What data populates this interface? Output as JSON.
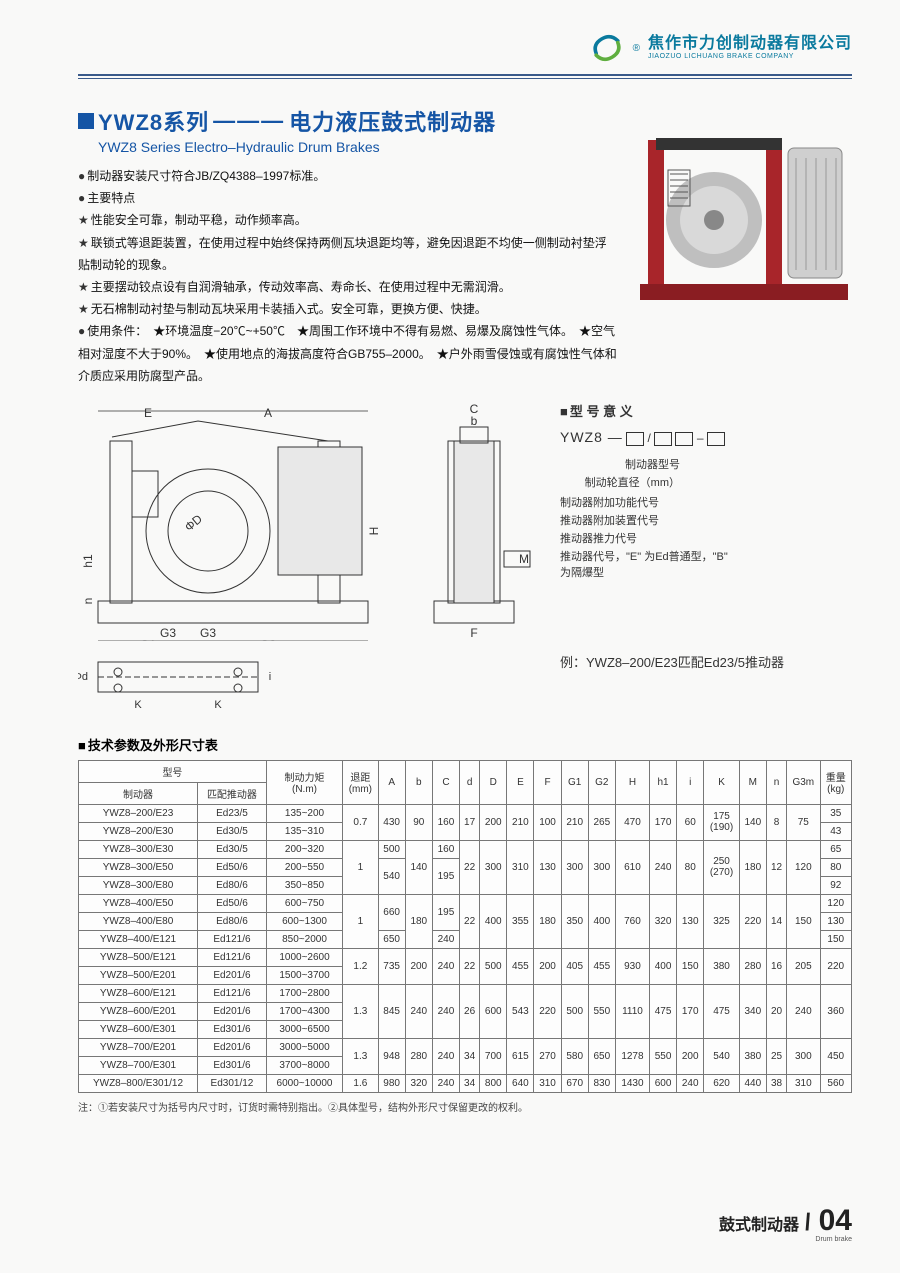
{
  "company": {
    "cn": "焦作市力创制动器有限公司",
    "en": "JIAOZUO LICHUANG BRAKE COMPANY",
    "logo_colors": {
      "blue": "#0a7a9e",
      "green": "#5fae3f"
    }
  },
  "title": {
    "series": "YWZ8系列",
    "dash": "———",
    "cn": "电力液压鼓式制动器",
    "en": "YWZ8 Series Electro–Hydraulic Drum Brakes"
  },
  "bullets": [
    {
      "type": "dot",
      "text": "制动器安装尺寸符合JB/ZQ4388–1997标准。"
    },
    {
      "type": "dot",
      "text": "主要特点"
    },
    {
      "type": "star",
      "text": "性能安全可靠，制动平稳，动作频率高。"
    },
    {
      "type": "star",
      "text": "联锁式等退距装置，在使用过程中始终保持两侧瓦块退距均等，避免因退距不均使一侧制动衬垫浮贴制动轮的现象。"
    },
    {
      "type": "star",
      "text": "主要摆动铰点设有自润滑轴承，传动效率高、寿命长、在使用过程中无需润滑。"
    },
    {
      "type": "star",
      "text": "无石棉制动衬垫与制动瓦块采用卡装插入式。安全可靠，更换方便、快捷。"
    },
    {
      "type": "dot",
      "text": "使用条件：　★环境温度−20℃~+50℃　★周围工作环境中不得有易燃、易爆及腐蚀性气体。　★空气相对湿度不大于90%。　★使用地点的海拔高度符合GB755–2000。　★户外雨雪侵蚀或有腐蚀性气体和介质应采用防腐型产品。"
    }
  ],
  "model_meaning": {
    "title": "型 号 意 义",
    "main": "YWZ8 —",
    "left_labels": [
      "制动器型号",
      "制动轮直径（mm）"
    ],
    "right_labels": [
      "制动器附加功能代号",
      "推动器附加装置代号",
      "推动器推力代号",
      "推动器代号，\"E\" 为Ed普通型，\"B\" 为隔爆型"
    ]
  },
  "example": "例：YWZ8–200/E23匹配Ed23/5推动器",
  "table": {
    "title": "技术参数及外形尺寸表",
    "header_row1": [
      "型号",
      "制动力矩\n(N.m)",
      "退距\n(mm)",
      "A",
      "b",
      "C",
      "d",
      "D",
      "E",
      "F",
      "G1",
      "G2",
      "H",
      "h1",
      "i",
      "K",
      "M",
      "n",
      "G3m",
      "重量\n(kg)"
    ],
    "header_row2": [
      "制动器",
      "匹配推动器"
    ],
    "row_heads": [
      [
        "YWZ8–200/E23",
        "Ed23/5"
      ],
      [
        "YWZ8–200/E30",
        "Ed30/5"
      ],
      [
        "YWZ8–300/E30",
        "Ed30/5"
      ],
      [
        "YWZ8–300/E50",
        "Ed50/6"
      ],
      [
        "YWZ8–300/E80",
        "Ed80/6"
      ],
      [
        "YWZ8–400/E50",
        "Ed50/6"
      ],
      [
        "YWZ8–400/E80",
        "Ed80/6"
      ],
      [
        "YWZ8–400/E121",
        "Ed121/6"
      ],
      [
        "YWZ8–500/E121",
        "Ed121/6"
      ],
      [
        "YWZ8–500/E201",
        "Ed201/6"
      ],
      [
        "YWZ8–600/E121",
        "Ed121/6"
      ],
      [
        "YWZ8–600/E201",
        "Ed201/6"
      ],
      [
        "YWZ8–600/E301",
        "Ed301/6"
      ],
      [
        "YWZ8–700/E201",
        "Ed201/6"
      ],
      [
        "YWZ8–700/E301",
        "Ed301/6"
      ],
      [
        "YWZ8–800/E301/12",
        "Ed301/12"
      ]
    ],
    "torque": [
      "135~200",
      "135~310",
      "200~320",
      "200~550",
      "350~850",
      "600~750",
      "600~1300",
      "850~2000",
      "1000~2600",
      "1500~3700",
      "1700~2800",
      "1700~4300",
      "3000~6500",
      "3000~5000",
      "3700~8000",
      "6000~10000"
    ],
    "retreat": [
      {
        "v": "0.7",
        "span": 2
      },
      {
        "v": "1",
        "span": 3
      },
      {
        "v": "1",
        "span": 3
      },
      {
        "v": "1.2",
        "span": 2
      },
      {
        "v": "1.3",
        "span": 3
      },
      {
        "v": "1.3",
        "span": 2
      },
      {
        "v": "1.6",
        "span": 1
      }
    ],
    "A": [
      {
        "v": "430",
        "span": 2
      },
      {
        "v": "500",
        "span": 1
      },
      {
        "v": "540",
        "span": 2
      },
      {
        "v": "660",
        "span": 2
      },
      {
        "v": "650",
        "span": 1
      },
      {
        "v": "735",
        "span": 2
      },
      {
        "v": "845",
        "span": 3
      },
      {
        "v": "948",
        "span": 2
      },
      {
        "v": "980",
        "span": 1
      }
    ],
    "b": [
      {
        "v": "90",
        "span": 2
      },
      {
        "v": "140",
        "span": 3
      },
      {
        "v": "180",
        "span": 3
      },
      {
        "v": "200",
        "span": 2
      },
      {
        "v": "240",
        "span": 3
      },
      {
        "v": "280",
        "span": 2
      },
      {
        "v": "320",
        "span": 1
      }
    ],
    "C": [
      {
        "v": "160",
        "span": 2
      },
      {
        "v": "160",
        "span": 1
      },
      {
        "v": "195",
        "span": 2
      },
      {
        "v": "195",
        "span": 2
      },
      {
        "v": "240",
        "span": 1
      },
      {
        "v": "240",
        "span": 2
      },
      {
        "v": "240",
        "span": 3
      },
      {
        "v": "240",
        "span": 2
      },
      {
        "v": "240",
        "span": 1
      }
    ],
    "d": [
      {
        "v": "17",
        "span": 2
      },
      {
        "v": "22",
        "span": 3
      },
      {
        "v": "22",
        "span": 3
      },
      {
        "v": "22",
        "span": 2
      },
      {
        "v": "26",
        "span": 3
      },
      {
        "v": "34",
        "span": 2
      },
      {
        "v": "34",
        "span": 1
      }
    ],
    "D": [
      {
        "v": "200",
        "span": 2
      },
      {
        "v": "300",
        "span": 3
      },
      {
        "v": "400",
        "span": 3
      },
      {
        "v": "500",
        "span": 2
      },
      {
        "v": "600",
        "span": 3
      },
      {
        "v": "700",
        "span": 2
      },
      {
        "v": "800",
        "span": 1
      }
    ],
    "E": [
      {
        "v": "210",
        "span": 2
      },
      {
        "v": "310",
        "span": 3
      },
      {
        "v": "355",
        "span": 3
      },
      {
        "v": "455",
        "span": 2
      },
      {
        "v": "543",
        "span": 3
      },
      {
        "v": "615",
        "span": 2
      },
      {
        "v": "640",
        "span": 1
      }
    ],
    "F": [
      {
        "v": "100",
        "span": 2
      },
      {
        "v": "130",
        "span": 3
      },
      {
        "v": "180",
        "span": 3
      },
      {
        "v": "200",
        "span": 2
      },
      {
        "v": "220",
        "span": 3
      },
      {
        "v": "270",
        "span": 2
      },
      {
        "v": "310",
        "span": 1
      }
    ],
    "G1": [
      {
        "v": "210",
        "span": 2
      },
      {
        "v": "300",
        "span": 3
      },
      {
        "v": "350",
        "span": 3
      },
      {
        "v": "405",
        "span": 2
      },
      {
        "v": "500",
        "span": 3
      },
      {
        "v": "580",
        "span": 2
      },
      {
        "v": "670",
        "span": 1
      }
    ],
    "G2": [
      {
        "v": "265",
        "span": 2
      },
      {
        "v": "300",
        "span": 3
      },
      {
        "v": "400",
        "span": 3
      },
      {
        "v": "455",
        "span": 2
      },
      {
        "v": "550",
        "span": 3
      },
      {
        "v": "650",
        "span": 2
      },
      {
        "v": "830",
        "span": 1
      }
    ],
    "H": [
      {
        "v": "470",
        "span": 2
      },
      {
        "v": "610",
        "span": 3
      },
      {
        "v": "760",
        "span": 3
      },
      {
        "v": "930",
        "span": 2
      },
      {
        "v": "1110",
        "span": 3
      },
      {
        "v": "1278",
        "span": 2
      },
      {
        "v": "1430",
        "span": 1
      }
    ],
    "h1": [
      {
        "v": "170",
        "span": 2
      },
      {
        "v": "240",
        "span": 3
      },
      {
        "v": "320",
        "span": 3
      },
      {
        "v": "400",
        "span": 2
      },
      {
        "v": "475",
        "span": 3
      },
      {
        "v": "550",
        "span": 2
      },
      {
        "v": "600",
        "span": 1
      }
    ],
    "i": [
      {
        "v": "60",
        "span": 2
      },
      {
        "v": "80",
        "span": 3
      },
      {
        "v": "130",
        "span": 3
      },
      {
        "v": "150",
        "span": 2
      },
      {
        "v": "170",
        "span": 3
      },
      {
        "v": "200",
        "span": 2
      },
      {
        "v": "240",
        "span": 1
      }
    ],
    "K": [
      {
        "v": "175\n(190)",
        "span": 2
      },
      {
        "v": "250\n(270)",
        "span": 3
      },
      {
        "v": "325",
        "span": 3
      },
      {
        "v": "380",
        "span": 2
      },
      {
        "v": "475",
        "span": 3
      },
      {
        "v": "540",
        "span": 2
      },
      {
        "v": "620",
        "span": 1
      }
    ],
    "M": [
      {
        "v": "140",
        "span": 2
      },
      {
        "v": "180",
        "span": 3
      },
      {
        "v": "220",
        "span": 3
      },
      {
        "v": "280",
        "span": 2
      },
      {
        "v": "340",
        "span": 3
      },
      {
        "v": "380",
        "span": 2
      },
      {
        "v": "440",
        "span": 1
      }
    ],
    "n": [
      {
        "v": "8",
        "span": 2
      },
      {
        "v": "12",
        "span": 3
      },
      {
        "v": "14",
        "span": 3
      },
      {
        "v": "16",
        "span": 2
      },
      {
        "v": "20",
        "span": 3
      },
      {
        "v": "25",
        "span": 2
      },
      {
        "v": "38",
        "span": 1
      }
    ],
    "G3": [
      {
        "v": "75",
        "span": 2
      },
      {
        "v": "120",
        "span": 3
      },
      {
        "v": "150",
        "span": 3
      },
      {
        "v": "205",
        "span": 2
      },
      {
        "v": "240",
        "span": 3
      },
      {
        "v": "300",
        "span": 2
      },
      {
        "v": "310",
        "span": 1
      }
    ],
    "weight": [
      "35",
      "43",
      "65",
      "80",
      "92",
      "120",
      "130",
      "150",
      "220",
      "360",
      "450",
      "560"
    ],
    "weight_full": [
      "35",
      "43",
      "65",
      "80",
      "92",
      "120",
      "130",
      "150",
      "",
      "220",
      "",
      "360",
      "",
      "",
      "450",
      "560"
    ],
    "weight_groups": [
      {
        "v": "35",
        "span": 1
      },
      {
        "v": "43",
        "span": 1
      },
      {
        "v": "65",
        "span": 1
      },
      {
        "v": "80",
        "span": 1
      },
      {
        "v": "92",
        "span": 1
      },
      {
        "v": "120",
        "span": 1
      },
      {
        "v": "130",
        "span": 1
      },
      {
        "v": "150",
        "span": 1
      },
      {
        "v": "220",
        "span": 2
      },
      {
        "v": "360",
        "span": 3
      },
      {
        "v": "450",
        "span": 2
      },
      {
        "v": "560",
        "span": 1
      }
    ]
  },
  "footnote": "注：①若安装尺寸为括号内尺寸时，订货时需特别指出。②具体型号，结构外形尺寸保留更改的权利。",
  "footer": {
    "cn": "鼓式制动器",
    "en": "Drum brake",
    "num": "04"
  },
  "colors": {
    "title_blue": "#1555a5",
    "rule_blue": "#3a5a8a",
    "brake_red": "#a8252a",
    "brake_grey": "#bfbfbf",
    "brake_silver": "#d9d9d9"
  }
}
